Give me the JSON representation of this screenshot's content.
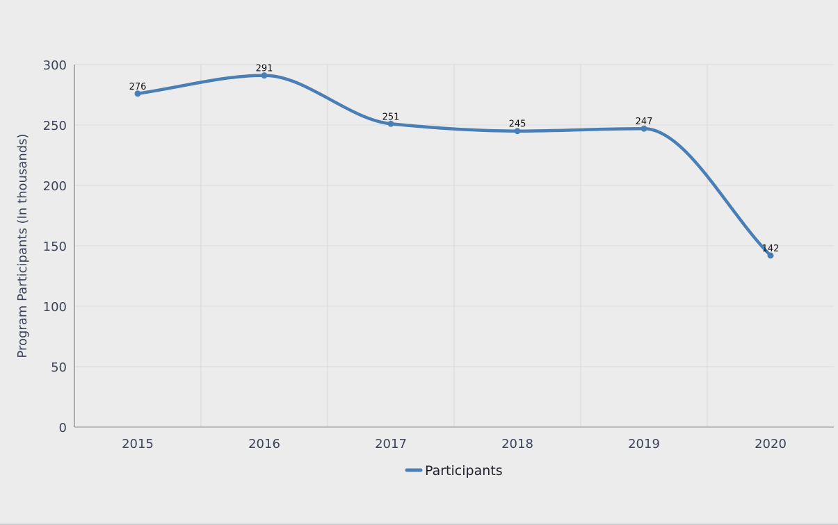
{
  "chart_data": {
    "type": "line",
    "categories": [
      "2015",
      "2016",
      "2017",
      "2018",
      "2019",
      "2020"
    ],
    "series": [
      {
        "name": "Participants",
        "values": [
          276,
          291,
          251,
          245,
          247,
          142
        ],
        "color": "#4a7fb5"
      }
    ],
    "data_labels": [
      "276",
      "291",
      "251",
      "245",
      "247",
      "142"
    ],
    "ylabel": "Program Participants (In thousands)",
    "xlabel": "",
    "ylim": [
      0,
      300
    ],
    "yticks": [
      0,
      50,
      100,
      150,
      200,
      250,
      300
    ],
    "grid": true,
    "legend": "bottom-center",
    "smooth": true
  }
}
